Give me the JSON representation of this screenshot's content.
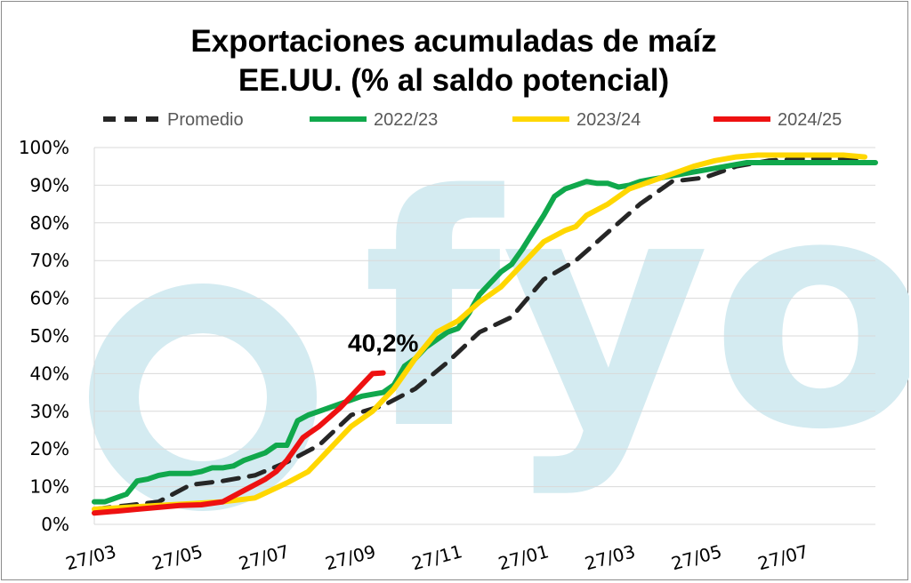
{
  "chart_data": {
    "type": "line",
    "title_line1": "Exportaciones acumuladas de maíz",
    "title_line2": "EE.UU. (% al saldo potencial)",
    "watermark": "fyo",
    "x_tick_labels": [
      "27/03",
      "27/05",
      "27/07",
      "27/09",
      "27/11",
      "27/01",
      "27/03",
      "27/05",
      "27/07"
    ],
    "ylim": [
      0,
      100
    ],
    "y_tick_values": [
      0,
      10,
      20,
      30,
      40,
      50,
      60,
      70,
      80,
      90,
      100
    ],
    "y_tick_labels": [
      "0%",
      "10%",
      "20%",
      "30%",
      "40%",
      "50%",
      "60%",
      "70%",
      "80%",
      "90%",
      "100%"
    ],
    "x_unit": "weeks since 27/03",
    "x_range": [
      0,
      73
    ],
    "grid": true,
    "legend_position": "top",
    "annotation": {
      "text": "40,2%",
      "series": "2024/25"
    },
    "series": [
      {
        "name": "Promedio",
        "color": "#262626",
        "dash": true,
        "x": [
          0,
          3,
          6,
          9,
          12,
          15,
          18,
          21,
          24,
          27,
          30,
          33,
          36,
          39,
          42,
          45,
          48,
          51,
          54,
          57,
          60,
          63,
          66,
          69,
          72
        ],
        "y": [
          4,
          5,
          6,
          10.5,
          11.5,
          13,
          16.5,
          21,
          29,
          31.5,
          36,
          43,
          51,
          55,
          65,
          70,
          77.5,
          85,
          91,
          92,
          95,
          96.5,
          97,
          97,
          97
        ]
      },
      {
        "name": "2022/23",
        "color": "#10a84c",
        "dash": false,
        "x": [
          0,
          1,
          2,
          3,
          4,
          5,
          6,
          7,
          8,
          9,
          10,
          11,
          12,
          13,
          14,
          15,
          16,
          17,
          18,
          19,
          20,
          21,
          22,
          23,
          24,
          25,
          26,
          27,
          28,
          29,
          30,
          31,
          32,
          33,
          34,
          35,
          36,
          37,
          38,
          39,
          40,
          41,
          42,
          43,
          44,
          45,
          46,
          47,
          48,
          49,
          50,
          51,
          52,
          53,
          54,
          55,
          56,
          57,
          58,
          59,
          60,
          61,
          62,
          63,
          64,
          65,
          66,
          67,
          68,
          69,
          70,
          71,
          72,
          73
        ],
        "y": [
          6,
          6,
          7,
          8,
          11.5,
          12,
          13,
          13.5,
          13.5,
          13.5,
          14,
          15,
          15,
          15.5,
          17,
          18,
          19,
          21,
          21,
          27.5,
          29,
          30,
          31,
          32,
          33,
          34,
          34.5,
          35,
          37,
          42,
          44,
          47,
          49,
          51,
          52,
          56,
          61,
          64,
          67,
          69,
          73,
          77.5,
          82,
          87,
          89,
          90,
          91,
          90.5,
          90.5,
          89.5,
          90,
          91,
          91.5,
          92,
          92.5,
          93,
          93.5,
          94,
          94.5,
          95,
          95.5,
          96,
          96,
          96,
          96,
          96,
          96,
          96,
          96,
          96,
          96,
          96,
          96,
          96
        ]
      },
      {
        "name": "2023/24",
        "color": "#ffd700",
        "dash": false,
        "x": [
          0,
          3,
          6,
          9,
          12,
          15,
          18,
          20,
          21,
          22,
          23,
          24,
          25,
          26,
          27,
          28,
          30,
          32,
          34,
          36,
          38,
          40,
          42,
          44,
          45,
          46,
          48,
          50,
          52,
          54,
          56,
          58,
          60,
          62,
          64,
          66,
          68,
          70,
          72
        ],
        "y": [
          4,
          4.5,
          5,
          5.5,
          6,
          7,
          11,
          14,
          17,
          20,
          23,
          26,
          28,
          30,
          33,
          36,
          44,
          51,
          54,
          59,
          63,
          69,
          75,
          78,
          79,
          82,
          85,
          89,
          91,
          93,
          95,
          96.5,
          97.5,
          98,
          98,
          98,
          98,
          98,
          97.5
        ]
      },
      {
        "name": "2024/25",
        "color": "#ee1111",
        "dash": false,
        "x": [
          0,
          2,
          4,
          6,
          8,
          10,
          12,
          14,
          16,
          17,
          18,
          19,
          19.5,
          20,
          21,
          22,
          23,
          24,
          25,
          26,
          27
        ],
        "y": [
          3,
          3.5,
          4,
          4.5,
          5,
          5.2,
          6,
          9,
          12,
          14,
          17,
          21,
          23,
          24,
          26,
          28.5,
          31,
          34,
          37,
          40,
          40.2
        ]
      }
    ]
  }
}
